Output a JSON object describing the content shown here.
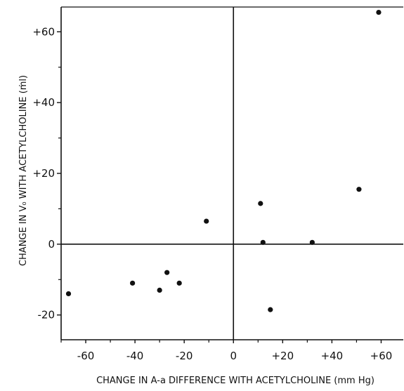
{
  "chart_data": {
    "type": "scatter",
    "title": "",
    "xlabel": "CHANGE IN A-a DIFFERENCE WITH ACETYLCHOLINE (mm Hg)",
    "ylabel": "CHANGE IN V₀ WITH ACETYLCHOLINE (ṁl)",
    "xlim": [
      -70,
      69
    ],
    "ylim": [
      -27,
      67
    ],
    "x_ticks": [
      -60,
      -40,
      -20,
      0,
      20,
      40,
      60
    ],
    "x_tick_labels": [
      "-60",
      "-40",
      "-20",
      "0",
      "+20",
      "+40",
      "+60"
    ],
    "y_ticks": [
      -20,
      0,
      20,
      40,
      60
    ],
    "y_tick_labels": [
      "-20",
      "0",
      "+20",
      "+40",
      "+60"
    ],
    "grid": false,
    "quadrant_lines": true,
    "points": [
      {
        "x": 59,
        "y": 65.5
      },
      {
        "x": 51,
        "y": 15.5
      },
      {
        "x": 11,
        "y": 11.5
      },
      {
        "x": 12,
        "y": 0.5
      },
      {
        "x": 32,
        "y": 0.5
      },
      {
        "x": 15,
        "y": -18.5
      },
      {
        "x": -11,
        "y": 6.5
      },
      {
        "x": -27,
        "y": -8
      },
      {
        "x": -30,
        "y": -13
      },
      {
        "x": -41,
        "y": -11
      },
      {
        "x": -22,
        "y": -11
      },
      {
        "x": -67,
        "y": -14
      }
    ]
  }
}
